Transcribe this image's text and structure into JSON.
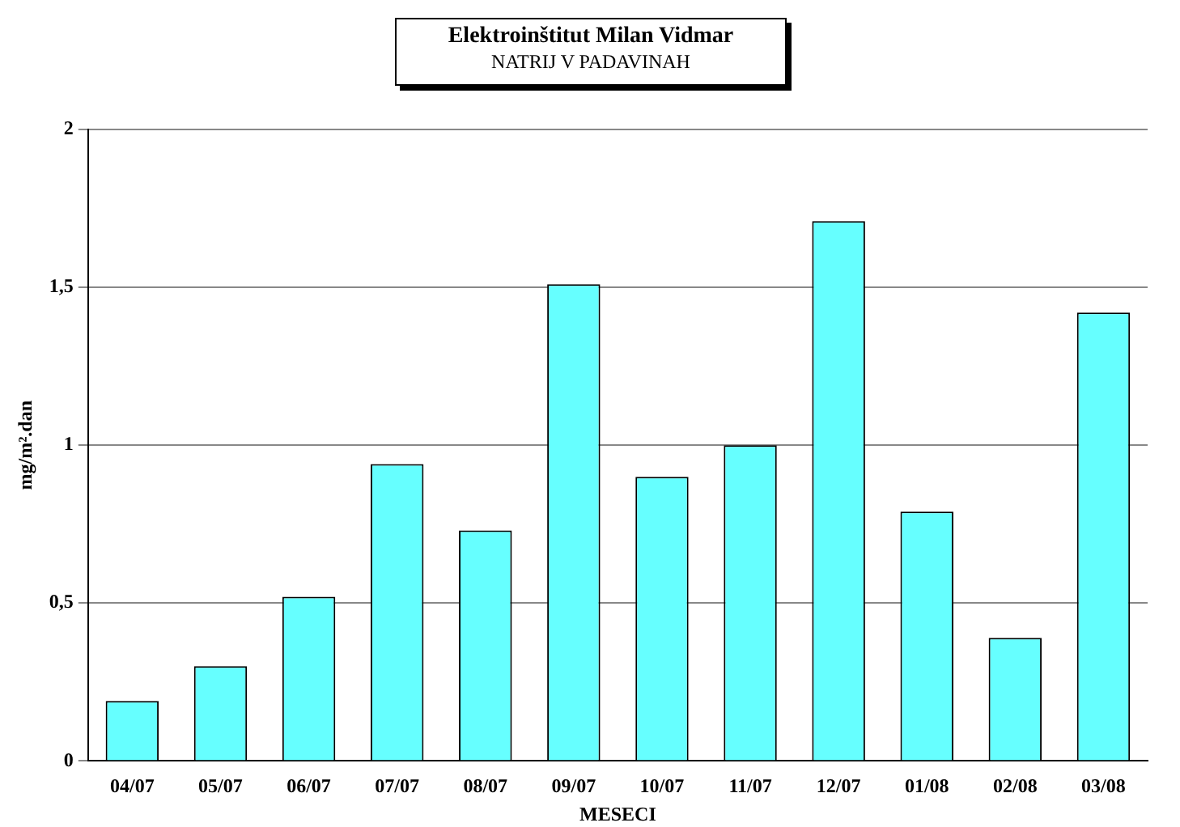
{
  "chart_data": {
    "type": "bar",
    "title": "Elektroinštitut Milan Vidmar",
    "subtitle": "NATRIJ V PADAVINAH",
    "xlabel": "MESECI",
    "ylabel": "mg/m².dan",
    "categories": [
      "04/07",
      "05/07",
      "06/07",
      "07/07",
      "08/07",
      "09/07",
      "10/07",
      "11/07",
      "12/07",
      "01/08",
      "02/08",
      "03/08"
    ],
    "values": [
      0.19,
      0.3,
      0.52,
      0.94,
      0.73,
      1.51,
      0.9,
      1.0,
      1.71,
      0.79,
      0.39,
      1.42
    ],
    "color": "#66ffff",
    "ylim": [
      0,
      2
    ],
    "yticks": [
      0,
      {
        "value": 0.5,
        "label": "0,5"
      },
      1,
      {
        "value": 1.5,
        "label": "1,5"
      },
      2
    ],
    "grid": "y"
  }
}
